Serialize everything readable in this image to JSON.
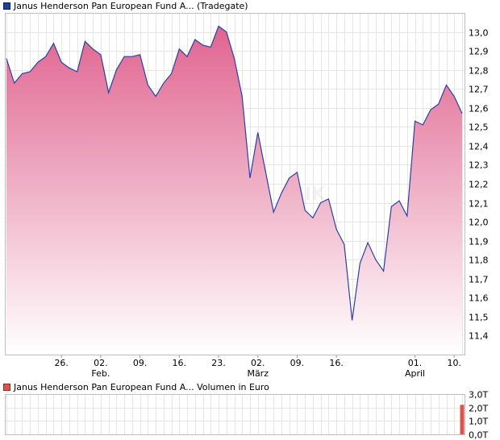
{
  "price_chart": {
    "legend": "Janus Henderson Pan European Fund A... (Tradegate)",
    "line_color": "#2b3fa8",
    "fill_top_color": "#e0648f",
    "fill_bottom_color": "#ffffff",
    "watermark": "GIK"
  },
  "volume_chart": {
    "legend": "Janus Henderson Pan European Fund A... Volumen in Euro",
    "bar_color": "#d9534f"
  },
  "chart_data": [
    {
      "type": "area",
      "title": "Janus Henderson Pan European Fund A... (Tradegate)",
      "ylim": [
        11.3,
        13.1
      ],
      "yticks": [
        11.4,
        11.5,
        11.6,
        11.7,
        11.8,
        11.9,
        12.0,
        12.1,
        12.2,
        12.3,
        12.4,
        12.5,
        12.6,
        12.7,
        12.8,
        12.9,
        13.0
      ],
      "ytick_labels": [
        "11,4",
        "11,5",
        "11,6",
        "11,7",
        "11,8",
        "11,9",
        "12,0",
        "12,1",
        "12,2",
        "12,3",
        "12,4",
        "12,5",
        "12,6",
        "12,7",
        "12,8",
        "12,9",
        "13,0"
      ],
      "xtick_labels": [
        {
          "day": "26.",
          "month": "",
          "idx": 7
        },
        {
          "day": "02.",
          "month": "Feb.",
          "idx": 12
        },
        {
          "day": "09.",
          "month": "",
          "idx": 17
        },
        {
          "day": "16.",
          "month": "",
          "idx": 22
        },
        {
          "day": "23.",
          "month": "",
          "idx": 27
        },
        {
          "day": "02.",
          "month": "März",
          "idx": 32
        },
        {
          "day": "09.",
          "month": "",
          "idx": 37
        },
        {
          "day": "16.",
          "month": "",
          "idx": 42
        },
        {
          "day": "01.",
          "month": "April",
          "idx": 52
        },
        {
          "day": "10.",
          "month": "",
          "idx": 57
        }
      ],
      "values": [
        12.86,
        12.73,
        12.78,
        12.79,
        12.84,
        12.87,
        12.94,
        12.84,
        12.81,
        12.79,
        12.95,
        12.91,
        12.88,
        12.68,
        12.8,
        12.87,
        12.87,
        12.88,
        12.72,
        12.66,
        12.73,
        12.78,
        12.91,
        12.87,
        12.96,
        12.93,
        12.92,
        13.03,
        13.0,
        12.86,
        12.66,
        12.23,
        12.47,
        12.26,
        12.05,
        12.15,
        12.23,
        12.26,
        12.06,
        12.02,
        12.1,
        12.12,
        11.96,
        11.88,
        11.48,
        11.78,
        11.89,
        11.8,
        11.74,
        12.08,
        12.11,
        12.03,
        12.53,
        12.51,
        12.59,
        12.62,
        12.72,
        12.66,
        12.57
      ]
    },
    {
      "type": "bar",
      "title": "Janus Henderson Pan European Fund A... Volumen in Euro",
      "ylim": [
        0,
        3.0
      ],
      "ytick_labels": [
        "0,0T",
        "1,0T",
        "2,0T",
        "3,0T"
      ],
      "yticks": [
        0,
        1.0,
        2.0,
        3.0
      ],
      "bars": [
        {
          "idx": 58,
          "value": 2.2
        }
      ]
    }
  ]
}
